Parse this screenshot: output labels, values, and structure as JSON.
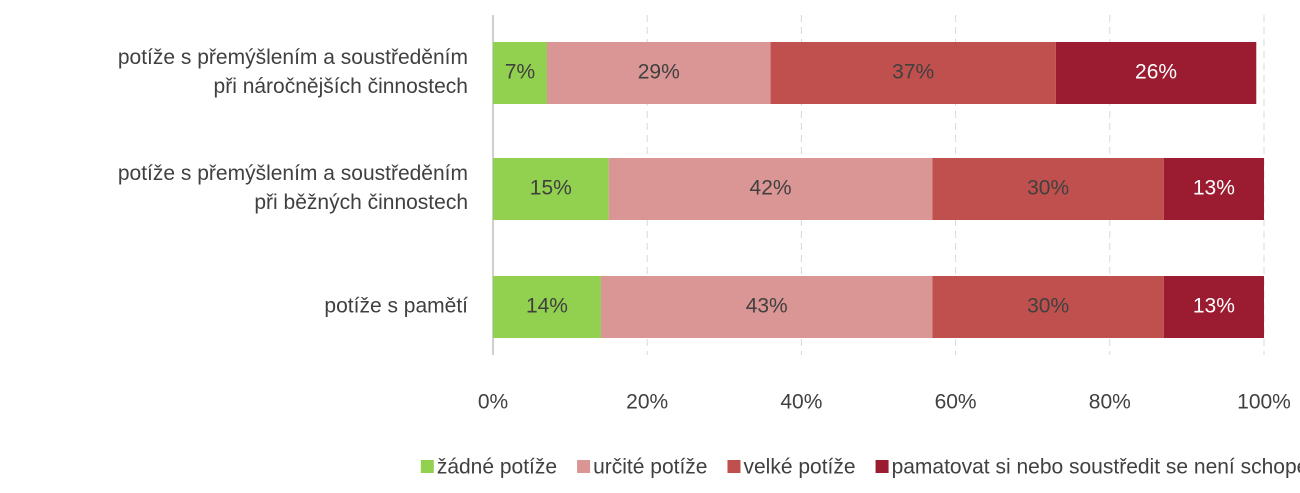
{
  "chart_data": {
    "type": "stacked_barh",
    "categories": [
      [
        "potíže s přemýšlením a soustředěním",
        "při náročnějších činnostech"
      ],
      [
        "potíže s přemýšlením a soustředěním",
        "při běžných činnostech"
      ],
      [
        "potíže s pamětí"
      ]
    ],
    "series": [
      {
        "name": "žádné potíže",
        "color": "#92d050",
        "values": [
          7,
          15,
          14
        ],
        "value_labels": [
          "7%",
          "15%",
          "14%"
        ]
      },
      {
        "name": "určité potíže",
        "color": "#da9694",
        "values": [
          29,
          42,
          43
        ],
        "value_labels": [
          "29%",
          "42%",
          "43%"
        ]
      },
      {
        "name": "velké potíže",
        "color": "#c0504d",
        "values": [
          37,
          30,
          30
        ],
        "value_labels": [
          "37%",
          "30%",
          "30%"
        ]
      },
      {
        "name": "pamatovat si nebo soustředit se není schopen/-na",
        "color": "#9b1b30",
        "values": [
          26,
          13,
          13
        ],
        "value_labels": [
          "26%",
          "13%",
          "13%"
        ]
      }
    ],
    "xlim": [
      0,
      100
    ],
    "xticks": [
      {
        "value": 0,
        "label": "0%"
      },
      {
        "value": 20,
        "label": "20%"
      },
      {
        "value": 40,
        "label": "40%"
      },
      {
        "value": 60,
        "label": "60%"
      },
      {
        "value": 80,
        "label": "80%"
      },
      {
        "value": 100,
        "label": "100%"
      }
    ],
    "grid": true,
    "legend": "bottom"
  }
}
